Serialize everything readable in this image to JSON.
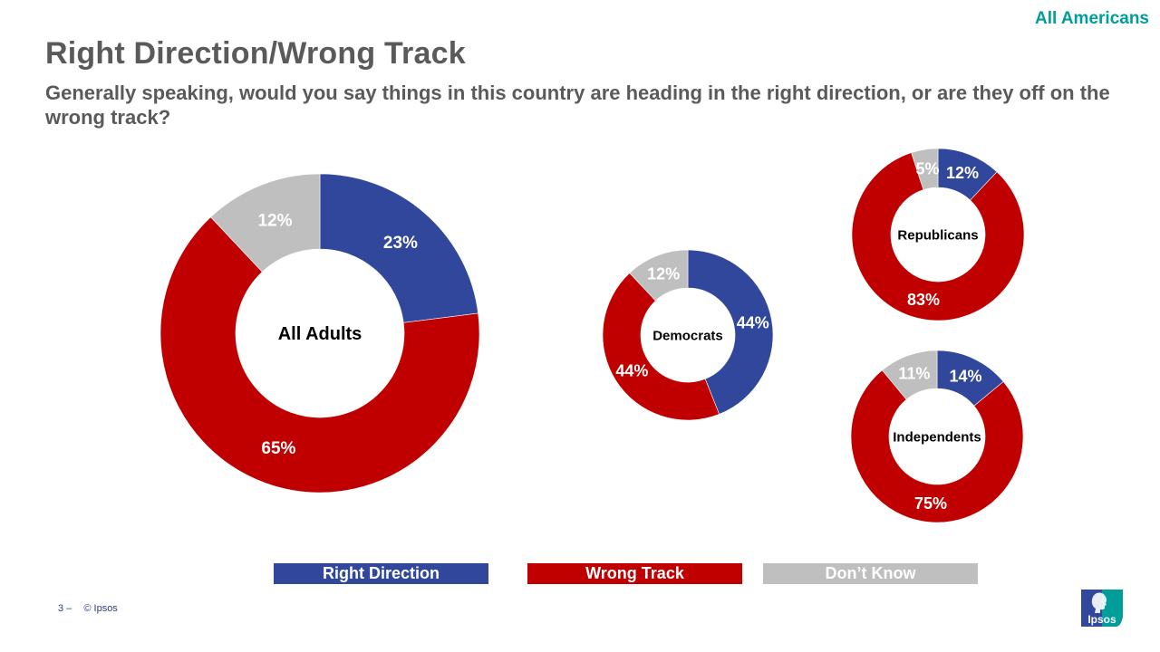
{
  "header": {
    "audience_tag": "All Americans",
    "title": "Right Direction/Wrong Track",
    "subtitle": "Generally speaking, would you say things in this country are heading in the right direction, or are they off on the wrong track?"
  },
  "colors": {
    "right_direction": "#30479B",
    "wrong_track": "#C00000",
    "dont_know": "#BFBFBF",
    "accent": "#009D9A"
  },
  "legend": {
    "items": [
      {
        "label": "Right Direction",
        "color": "#30479B"
      },
      {
        "label": "Wrong Track",
        "color": "#C00000"
      },
      {
        "label": "Don’t Know",
        "color": "#BFBFBF"
      }
    ]
  },
  "footer": {
    "page_number": "3 –",
    "copyright": "© Ipsos"
  },
  "logo": {
    "text": "Ipsos"
  },
  "chart_data": [
    {
      "type": "pie",
      "subtype": "donut",
      "title": "All Adults",
      "categories": [
        "Right Direction",
        "Wrong Track",
        "Don't Know"
      ],
      "values": [
        23,
        65,
        12
      ],
      "labels": [
        "23%",
        "65%",
        "12%"
      ],
      "start_angle": "12 o'clock",
      "direction": "clockwise"
    },
    {
      "type": "pie",
      "subtype": "donut",
      "title": "Democrats",
      "categories": [
        "Right Direction",
        "Wrong Track",
        "Don't Know"
      ],
      "values": [
        44,
        44,
        12
      ],
      "labels": [
        "44%",
        "44%",
        "12%"
      ],
      "start_angle": "12 o'clock",
      "direction": "clockwise"
    },
    {
      "type": "pie",
      "subtype": "donut",
      "title": "Republicans",
      "categories": [
        "Right Direction",
        "Wrong Track",
        "Don't Know"
      ],
      "values": [
        12,
        83,
        5
      ],
      "labels": [
        "12%",
        "83%",
        "5%"
      ],
      "start_angle": "12 o'clock",
      "direction": "clockwise"
    },
    {
      "type": "pie",
      "subtype": "donut",
      "title": "Independents",
      "categories": [
        "Right Direction",
        "Wrong Track",
        "Don't Know"
      ],
      "values": [
        14,
        75,
        11
      ],
      "labels": [
        "14%",
        "75%",
        "11%"
      ],
      "start_angle": "12 o'clock",
      "direction": "clockwise"
    }
  ]
}
